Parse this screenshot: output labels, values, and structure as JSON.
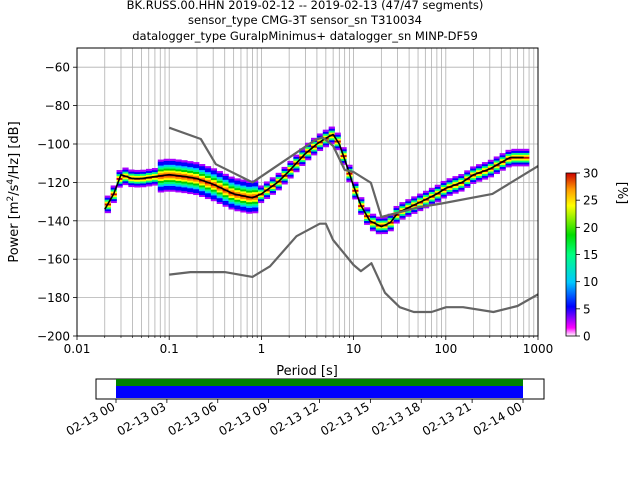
{
  "chart_data": {
    "type": "heatmap",
    "title_lines": [
      "BK.RUSS.00.HHN   2019-02-12 -- 2019-02-13  (47/47 segments)",
      "sensor_type CMG-3T sensor_sn T310034",
      "datalogger_type GuralpMinimus+ datalogger_sn MINP-DF59"
    ],
    "xlabel": "Period [s]",
    "ylabel_parts": {
      "a": "Power [m",
      "b": "2",
      "c": "/s",
      "d": "4",
      "e": "/Hz] [dB]"
    },
    "xscale": "log",
    "xlim": [
      0.01,
      1000
    ],
    "ylim": [
      -200,
      -50
    ],
    "grid": true,
    "x_ticks": [
      {
        "v": 0.01,
        "label": "0.01"
      },
      {
        "v": 0.1,
        "label": "0.1"
      },
      {
        "v": 1,
        "label": "1"
      },
      {
        "v": 10,
        "label": "10"
      },
      {
        "v": 100,
        "label": "100"
      },
      {
        "v": 1000,
        "label": "1000"
      }
    ],
    "y_ticks": [
      {
        "v": -60,
        "label": "−60"
      },
      {
        "v": -80,
        "label": "−80"
      },
      {
        "v": -100,
        "label": "−100"
      },
      {
        "v": -120,
        "label": "−120"
      },
      {
        "v": -140,
        "label": "−140"
      },
      {
        "v": -160,
        "label": "−160"
      },
      {
        "v": -180,
        "label": "−180"
      },
      {
        "v": -200,
        "label": "−200"
      }
    ],
    "series": [
      {
        "role": "mean",
        "color": "#000000",
        "x": [
          0.02,
          0.025,
          0.03,
          0.04,
          0.05,
          0.07,
          0.1,
          0.15,
          0.2,
          0.3,
          0.5,
          0.8,
          1.0,
          1.5,
          2.0,
          3.0,
          4.0,
          5.0,
          6.0,
          7.0,
          8.0,
          10,
          12,
          15,
          20,
          25,
          30,
          40,
          60,
          80,
          100,
          150,
          200,
          300,
          500,
          700
        ],
        "y": [
          -134,
          -126,
          -116,
          -118,
          -118,
          -117,
          -116,
          -117,
          -118,
          -121,
          -126,
          -128,
          -126,
          -120,
          -114,
          -105,
          -100,
          -97,
          -95,
          -100,
          -108,
          -122,
          -132,
          -140,
          -143,
          -141,
          -136,
          -133,
          -129,
          -126,
          -123,
          -120,
          -116,
          -113,
          -107,
          -107
        ]
      },
      {
        "role": "model-high",
        "color": "#646464",
        "x": [
          0.1,
          0.22,
          0.32,
          0.8,
          3.8,
          4.6,
          6.0,
          8.0,
          10,
          15.4,
          20,
          50,
          90,
          320,
          1000
        ],
        "y": [
          -91.5,
          -97.4,
          -110.5,
          -120.0,
          -98.0,
          -96.5,
          -101.0,
          -113.5,
          -114.6,
          -120.2,
          -138.0,
          -133.0,
          -131.0,
          -126.0,
          -111.5
        ]
      },
      {
        "role": "model-low",
        "color": "#646464",
        "x": [
          0.1,
          0.17,
          0.4,
          0.8,
          1.24,
          2.4,
          4.3,
          5.0,
          6.0,
          10,
          12,
          15.6,
          21.9,
          31.6,
          45,
          70,
          101,
          154,
          328,
          600,
          1000
        ],
        "y": [
          -168.0,
          -166.7,
          -166.7,
          -169.2,
          -163.7,
          -148.0,
          -141.5,
          -141.5,
          -150.0,
          -163.0,
          -166.2,
          -162.1,
          -177.5,
          -185.0,
          -187.5,
          -187.5,
          -185.0,
          -185.0,
          -187.5,
          -184.4,
          -178.3
        ]
      }
    ],
    "colorbar": {
      "label": "[%]",
      "range": [
        0,
        30
      ],
      "ticks": [
        "0",
        "5",
        "10",
        "15",
        "20",
        "25",
        "30"
      ]
    },
    "timeline": {
      "ticks": [
        "02-13 00",
        "02-13 03",
        "02-13 06",
        "02-13 09",
        "02-13 12",
        "02-13 15",
        "02-13 18",
        "02-13 21",
        "02-14 00"
      ],
      "bar_colors": [
        "#008000",
        "#0000ff"
      ]
    }
  }
}
